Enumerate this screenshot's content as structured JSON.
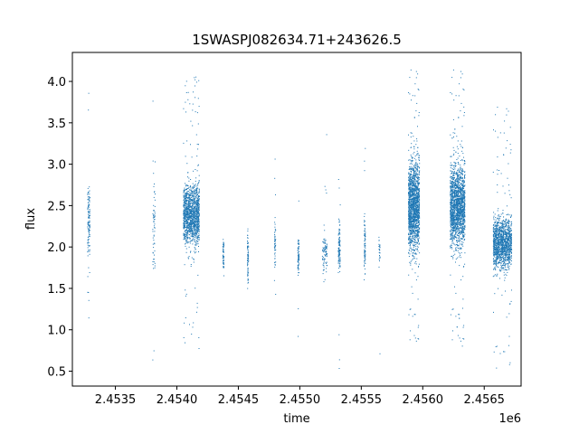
{
  "chart_data": {
    "type": "scatter",
    "title": "1SWASPJ082634.71+243626.5",
    "xlabel": "time",
    "ylabel": "flux",
    "x_offset_label": "1e6",
    "xlim": [
      2453150,
      2456800
    ],
    "ylim": [
      0.32,
      4.35
    ],
    "x_ticks": [
      2453500,
      2454000,
      2454500,
      2455000,
      2455500,
      2456000,
      2456500
    ],
    "x_tick_labels": [
      "2.4535",
      "2.4540",
      "2.4545",
      "2.4550",
      "2.4555",
      "2.4560",
      "2.4565"
    ],
    "y_ticks": [
      0.5,
      1.0,
      1.5,
      2.0,
      2.5,
      3.0,
      3.5,
      4.0
    ],
    "y_tick_labels": [
      "0.5",
      "1.0",
      "1.5",
      "2.0",
      "2.5",
      "3.0",
      "3.5",
      "4.0"
    ],
    "grid": false,
    "marker_color": "#1f77b4",
    "clusters": [
      {
        "x_start": 2453270,
        "x_end": 2453290,
        "center": 2.3,
        "spread": 0.35,
        "count": 120
      },
      {
        "x_start": 2453800,
        "x_end": 2453820,
        "center": 2.3,
        "spread": 0.6,
        "count": 60
      },
      {
        "x_start": 2454050,
        "x_end": 2454180,
        "center": 2.4,
        "spread": 0.3,
        "count": 1400
      },
      {
        "x_start": 2454370,
        "x_end": 2454380,
        "center": 1.9,
        "spread": 0.2,
        "count": 50
      },
      {
        "x_start": 2454570,
        "x_end": 2454580,
        "center": 1.9,
        "spread": 0.25,
        "count": 70
      },
      {
        "x_start": 2454790,
        "x_end": 2454800,
        "center": 2.0,
        "spread": 0.25,
        "count": 50
      },
      {
        "x_start": 2454980,
        "x_end": 2454990,
        "center": 1.9,
        "spread": 0.2,
        "count": 70
      },
      {
        "x_start": 2455180,
        "x_end": 2455220,
        "center": 1.95,
        "spread": 0.25,
        "count": 90
      },
      {
        "x_start": 2455310,
        "x_end": 2455325,
        "center": 2.0,
        "spread": 0.25,
        "count": 120
      },
      {
        "x_start": 2455520,
        "x_end": 2455530,
        "center": 2.0,
        "spread": 0.25,
        "count": 80
      },
      {
        "x_start": 2455640,
        "x_end": 2455650,
        "center": 1.95,
        "spread": 0.15,
        "count": 25
      },
      {
        "x_start": 2455880,
        "x_end": 2455970,
        "center": 2.5,
        "spread": 0.45,
        "count": 1600
      },
      {
        "x_start": 2456220,
        "x_end": 2456340,
        "center": 2.5,
        "spread": 0.4,
        "count": 1800
      },
      {
        "x_start": 2456570,
        "x_end": 2456720,
        "center": 2.05,
        "spread": 0.25,
        "count": 1400
      }
    ]
  }
}
